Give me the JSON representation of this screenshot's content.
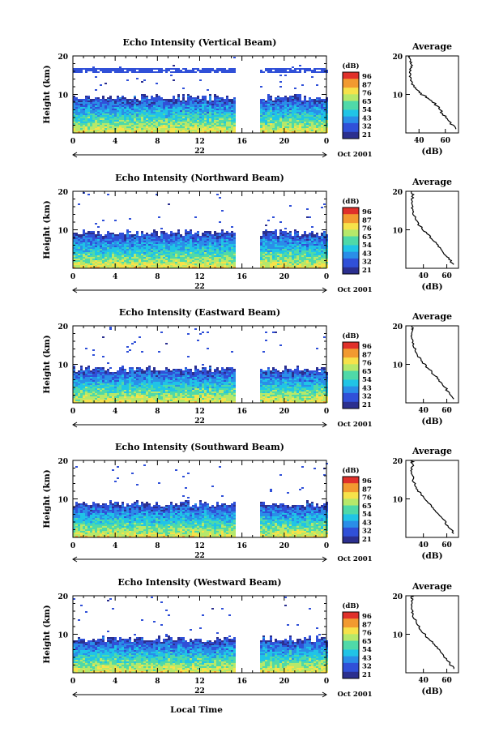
{
  "figure": {
    "xlabel": "Local Time",
    "ylabel": "Height (km)",
    "colorbar_unit": "(dB)",
    "colorbar_ticks": [
      "96",
      "87",
      "76",
      "65",
      "54",
      "43",
      "32",
      "21"
    ],
    "average_title": "Average",
    "average_xlabel": "(dB)",
    "date_suffix": "Oct 2001"
  },
  "chart_data": [
    {
      "type": "heatmap",
      "title": "Echo Intensity (Vertical Beam)",
      "xlabel": "",
      "ylabel": "Height (km)",
      "x_ticks": [
        "0",
        "4",
        "8",
        "12",
        "16",
        "20",
        "0"
      ],
      "xlim": [
        0,
        24
      ],
      "y_ticks": [
        "20",
        "10"
      ],
      "ylim": [
        0,
        20
      ],
      "day": "22",
      "clim": [
        21,
        96
      ],
      "gap_hours": [
        15.6,
        17.7
      ],
      "cloud_top_km": 9.5,
      "layer_km": 16.5,
      "avg_profile": {
        "title": "Average",
        "xlabel": "(dB)",
        "x_ticks": [
          "40",
          "60"
        ],
        "xlim": [
          30,
          70
        ],
        "points": [
          [
            68,
            1
          ],
          [
            63,
            3
          ],
          [
            58,
            5
          ],
          [
            54,
            7
          ],
          [
            47,
            9
          ],
          [
            40,
            10.5
          ],
          [
            36,
            12
          ],
          [
            34,
            14
          ],
          [
            33,
            16
          ],
          [
            35,
            17.5
          ],
          [
            33,
            18.5
          ],
          [
            33,
            20
          ]
        ]
      }
    },
    {
      "type": "heatmap",
      "title": "Echo Intensity (Northward Beam)",
      "xlabel": "",
      "ylabel": "Height (km)",
      "x_ticks": [
        "0",
        "4",
        "8",
        "12",
        "16",
        "20",
        "0"
      ],
      "xlim": [
        0,
        24
      ],
      "y_ticks": [
        "20",
        "10"
      ],
      "ylim": [
        0,
        20
      ],
      "day": "22",
      "clim": [
        21,
        96
      ],
      "gap_hours": [
        15.6,
        17.7
      ],
      "cloud_top_km": 9.5,
      "layer_km": 0,
      "avg_profile": {
        "title": "Average",
        "xlabel": "(dB)",
        "x_ticks": [
          "40",
          "60"
        ],
        "xlim": [
          25,
          70
        ],
        "points": [
          [
            66,
            1
          ],
          [
            60,
            3
          ],
          [
            55,
            5
          ],
          [
            49,
            7
          ],
          [
            43,
            9
          ],
          [
            37,
            11
          ],
          [
            33,
            13
          ],
          [
            31,
            15
          ],
          [
            30,
            17
          ],
          [
            31,
            19
          ],
          [
            30,
            20
          ]
        ]
      }
    },
    {
      "type": "heatmap",
      "title": "Echo Intensity (Eastward Beam)",
      "xlabel": "",
      "ylabel": "Height (km)",
      "x_ticks": [
        "0",
        "4",
        "8",
        "12",
        "16",
        "20",
        "0"
      ],
      "xlim": [
        0,
        24
      ],
      "y_ticks": [
        "20",
        "10"
      ],
      "ylim": [
        0,
        20
      ],
      "day": "22",
      "clim": [
        21,
        96
      ],
      "gap_hours": [
        15.6,
        17.7
      ],
      "cloud_top_km": 9.0,
      "layer_km": 0,
      "avg_profile": {
        "title": "Average",
        "xlabel": "(dB)",
        "x_ticks": [
          "40",
          "60"
        ],
        "xlim": [
          25,
          70
        ],
        "points": [
          [
            66,
            1
          ],
          [
            61,
            3
          ],
          [
            56,
            5
          ],
          [
            50,
            7
          ],
          [
            44,
            9
          ],
          [
            38,
            11
          ],
          [
            34,
            13
          ],
          [
            31,
            15
          ],
          [
            30,
            17
          ],
          [
            31,
            19
          ],
          [
            30,
            20
          ]
        ]
      }
    },
    {
      "type": "heatmap",
      "title": "Echo Intensity (Southward Beam)",
      "xlabel": "",
      "ylabel": "Height (km)",
      "x_ticks": [
        "0",
        "4",
        "8",
        "12",
        "16",
        "20",
        "0"
      ],
      "xlim": [
        0,
        24
      ],
      "y_ticks": [
        "20",
        "10"
      ],
      "ylim": [
        0,
        20
      ],
      "day": "22",
      "clim": [
        21,
        96
      ],
      "gap_hours": [
        15.6,
        17.7
      ],
      "cloud_top_km": 9.0,
      "layer_km": 0,
      "avg_profile": {
        "title": "Average",
        "xlabel": "(dB)",
        "x_ticks": [
          "40",
          "60"
        ],
        "xlim": [
          25,
          70
        ],
        "points": [
          [
            66,
            1
          ],
          [
            61,
            3
          ],
          [
            56,
            5
          ],
          [
            50,
            7
          ],
          [
            44,
            9
          ],
          [
            38,
            11
          ],
          [
            34,
            13
          ],
          [
            31,
            15
          ],
          [
            30,
            17
          ],
          [
            31,
            19
          ],
          [
            30,
            20
          ]
        ]
      }
    },
    {
      "type": "heatmap",
      "title": "Echo Intensity (Westward Beam)",
      "xlabel": "Local Time",
      "ylabel": "Height (km)",
      "x_ticks": [
        "0",
        "4",
        "8",
        "12",
        "16",
        "20",
        "0"
      ],
      "xlim": [
        0,
        24
      ],
      "y_ticks": [
        "20",
        "10"
      ],
      "ylim": [
        0,
        20
      ],
      "day": "22",
      "clim": [
        21,
        96
      ],
      "gap_hours": [
        15.6,
        17.7
      ],
      "cloud_top_km": 9.0,
      "layer_km": 0,
      "avg_profile": {
        "title": "Average",
        "xlabel": "(dB)",
        "x_ticks": [
          "40",
          "60"
        ],
        "xlim": [
          25,
          70
        ],
        "points": [
          [
            66,
            1
          ],
          [
            61,
            3
          ],
          [
            56,
            5
          ],
          [
            50,
            7
          ],
          [
            44,
            9
          ],
          [
            38,
            11
          ],
          [
            34,
            13
          ],
          [
            31,
            15
          ],
          [
            30,
            17
          ],
          [
            31,
            19
          ],
          [
            30,
            20
          ]
        ]
      }
    }
  ],
  "colormap": [
    "#2b2f8f",
    "#3050d8",
    "#2a8ee8",
    "#20c4e6",
    "#4fd9a8",
    "#b6e86a",
    "#f6e24a",
    "#f29a30",
    "#e0302a"
  ]
}
